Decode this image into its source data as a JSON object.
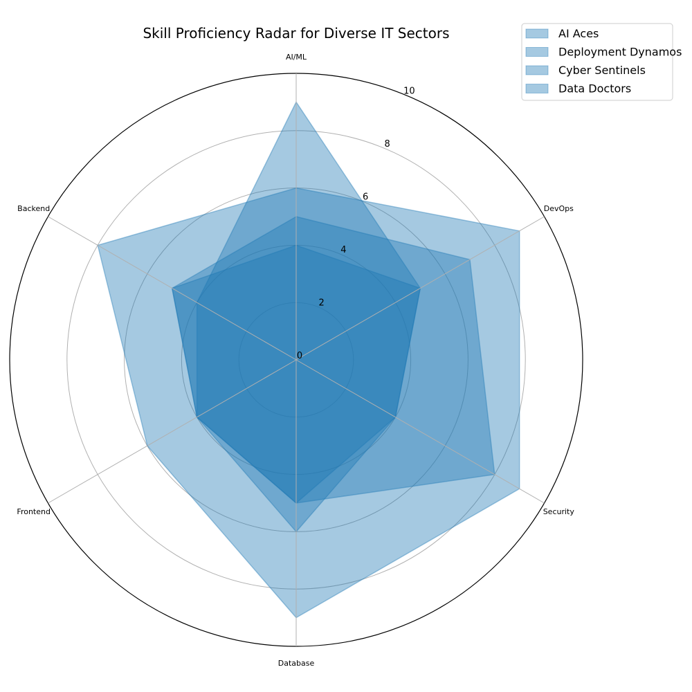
{
  "chart_data": {
    "type": "radar",
    "title": "Skill Proficiency Radar for Diverse IT Sectors",
    "axes": [
      "AI/ML",
      "DevOps",
      "Security",
      "Database",
      "Frontend",
      "Backend"
    ],
    "rlim": [
      0,
      10
    ],
    "rticks": [
      0,
      2,
      4,
      6,
      8,
      10
    ],
    "grid": true,
    "legend_position": "top-right",
    "fill_color": "#1f77b4",
    "series": [
      {
        "name": "AI Aces",
        "values": [
          9,
          5,
          4,
          6,
          4,
          4
        ]
      },
      {
        "name": "Deployment Dynamos",
        "values": [
          6,
          9,
          9,
          9,
          6,
          8
        ]
      },
      {
        "name": "Cyber Sentinels",
        "values": [
          5,
          7,
          8,
          5,
          4,
          5
        ]
      },
      {
        "name": "Data Doctors",
        "values": [
          4,
          5,
          4,
          5,
          4,
          5
        ]
      }
    ]
  }
}
